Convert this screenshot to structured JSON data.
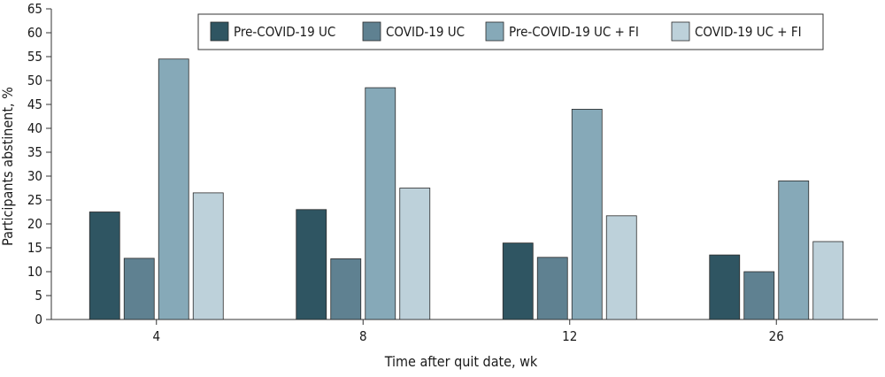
{
  "chart_data": {
    "type": "bar",
    "categories": [
      "4",
      "8",
      "12",
      "26"
    ],
    "series": [
      {
        "name": "Pre-COVID-19 UC",
        "color": "#2f5562",
        "values": [
          22.5,
          23.0,
          16.0,
          13.5
        ]
      },
      {
        "name": "COVID-19 UC",
        "color": "#5f8191",
        "values": [
          12.8,
          12.7,
          13.0,
          10.0
        ]
      },
      {
        "name": "Pre-COVID-19 UC + FI",
        "color": "#86a9b8",
        "values": [
          54.5,
          48.5,
          44.0,
          29.0
        ]
      },
      {
        "name": "COVID-19 UC + FI",
        "color": "#bdd1da",
        "values": [
          26.5,
          27.5,
          21.7,
          16.3
        ]
      }
    ],
    "xlabel": "Time after quit date, wk",
    "ylabel": "Participants abstinent, %",
    "ylim": [
      0,
      65
    ],
    "yticks": [
      0,
      5,
      10,
      15,
      20,
      25,
      30,
      35,
      40,
      45,
      50,
      55,
      60,
      65
    ],
    "grid": false,
    "legend_position": "top-right"
  }
}
